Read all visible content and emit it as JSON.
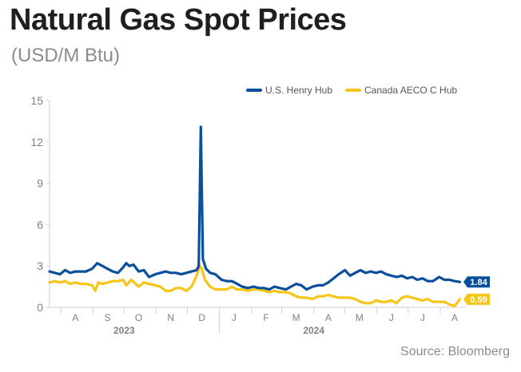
{
  "title": "Natural Gas Spot Prices",
  "subtitle": "(USD/M Btu)",
  "source": "Source: Bloomberg",
  "colors": {
    "henry_hub": "#0a4f9c",
    "aeco": "#f5c518",
    "axis_text": "#808080",
    "grid": "#d8d8d8"
  },
  "chart_data": {
    "type": "line",
    "title": "Natural Gas Spot Prices",
    "subtitle": "(USD/M Btu)",
    "xlabel": "",
    "ylabel": "",
    "ylim": [
      0,
      15
    ],
    "yticks": [
      "0",
      "3",
      "6",
      "9",
      "12",
      "15"
    ],
    "xlim": [
      "2023-07-21",
      "2024-08-25"
    ],
    "month_ticks": [
      {
        "label": "A",
        "date": "2023-08-15"
      },
      {
        "label": "S",
        "date": "2023-09-15"
      },
      {
        "label": "O",
        "date": "2023-10-15"
      },
      {
        "label": "N",
        "date": "2023-11-15"
      },
      {
        "label": "D",
        "date": "2023-12-15"
      },
      {
        "label": "J",
        "date": "2024-01-15"
      },
      {
        "label": "F",
        "date": "2024-02-15"
      },
      {
        "label": "M",
        "date": "2024-03-15"
      },
      {
        "label": "A",
        "date": "2024-04-15"
      },
      {
        "label": "M",
        "date": "2024-05-15"
      },
      {
        "label": "J",
        "date": "2024-06-15"
      },
      {
        "label": "J",
        "date": "2024-07-15"
      },
      {
        "label": "A",
        "date": "2024-08-15"
      }
    ],
    "year_labels": [
      {
        "label": "2023",
        "date": "2023-10-01"
      },
      {
        "label": "2024",
        "date": "2024-04-01"
      }
    ],
    "legend_position": "top-right",
    "grid": false,
    "series": [
      {
        "name": "U.S. Henry Hub",
        "color": "#0a4f9c",
        "end_label": "1.84",
        "points": [
          [
            "2023-07-21",
            2.6
          ],
          [
            "2023-07-26",
            2.5
          ],
          [
            "2023-07-31",
            2.4
          ],
          [
            "2023-08-05",
            2.7
          ],
          [
            "2023-08-10",
            2.5
          ],
          [
            "2023-08-15",
            2.6
          ],
          [
            "2023-08-20",
            2.6
          ],
          [
            "2023-08-25",
            2.6
          ],
          [
            "2023-08-31",
            2.8
          ],
          [
            "2023-09-05",
            3.2
          ],
          [
            "2023-09-10",
            3.0
          ],
          [
            "2023-09-15",
            2.8
          ],
          [
            "2023-09-20",
            2.6
          ],
          [
            "2023-09-25",
            2.5
          ],
          [
            "2023-09-30",
            2.9
          ],
          [
            "2023-10-03",
            3.2
          ],
          [
            "2023-10-06",
            3.0
          ],
          [
            "2023-10-10",
            3.1
          ],
          [
            "2023-10-15",
            2.6
          ],
          [
            "2023-10-20",
            2.7
          ],
          [
            "2023-10-25",
            2.2
          ],
          [
            "2023-10-31",
            2.4
          ],
          [
            "2023-11-05",
            2.5
          ],
          [
            "2023-11-10",
            2.6
          ],
          [
            "2023-11-15",
            2.5
          ],
          [
            "2023-11-20",
            2.5
          ],
          [
            "2023-11-25",
            2.4
          ],
          [
            "2023-11-30",
            2.5
          ],
          [
            "2023-12-05",
            2.6
          ],
          [
            "2023-12-10",
            2.7
          ],
          [
            "2023-12-12",
            3.0
          ],
          [
            "2023-12-14",
            13.1
          ],
          [
            "2023-12-16",
            3.5
          ],
          [
            "2023-12-19",
            2.8
          ],
          [
            "2023-12-23",
            2.5
          ],
          [
            "2023-12-28",
            2.4
          ],
          [
            "2024-01-03",
            2.0
          ],
          [
            "2024-01-08",
            1.9
          ],
          [
            "2024-01-13",
            1.9
          ],
          [
            "2024-01-18",
            1.7
          ],
          [
            "2024-01-23",
            1.5
          ],
          [
            "2024-01-28",
            1.4
          ],
          [
            "2024-02-03",
            1.5
          ],
          [
            "2024-02-08",
            1.4
          ],
          [
            "2024-02-13",
            1.4
          ],
          [
            "2024-02-18",
            1.3
          ],
          [
            "2024-02-23",
            1.5
          ],
          [
            "2024-02-28",
            1.4
          ],
          [
            "2024-03-05",
            1.3
          ],
          [
            "2024-03-10",
            1.5
          ],
          [
            "2024-03-15",
            1.7
          ],
          [
            "2024-03-20",
            1.6
          ],
          [
            "2024-03-25",
            1.3
          ],
          [
            "2024-03-31",
            1.5
          ],
          [
            "2024-04-05",
            1.6
          ],
          [
            "2024-04-10",
            1.6
          ],
          [
            "2024-04-15",
            1.8
          ],
          [
            "2024-04-20",
            2.1
          ],
          [
            "2024-04-25",
            2.4
          ],
          [
            "2024-05-01",
            2.7
          ],
          [
            "2024-05-06",
            2.3
          ],
          [
            "2024-05-11",
            2.5
          ],
          [
            "2024-05-16",
            2.7
          ],
          [
            "2024-05-21",
            2.5
          ],
          [
            "2024-05-26",
            2.6
          ],
          [
            "2024-05-31",
            2.5
          ],
          [
            "2024-06-05",
            2.6
          ],
          [
            "2024-06-10",
            2.4
          ],
          [
            "2024-06-15",
            2.3
          ],
          [
            "2024-06-20",
            2.2
          ],
          [
            "2024-06-25",
            2.3
          ],
          [
            "2024-06-30",
            2.1
          ],
          [
            "2024-07-05",
            2.2
          ],
          [
            "2024-07-10",
            2.0
          ],
          [
            "2024-07-15",
            2.1
          ],
          [
            "2024-07-20",
            1.9
          ],
          [
            "2024-07-25",
            1.9
          ],
          [
            "2024-07-31",
            2.2
          ],
          [
            "2024-08-05",
            2.0
          ],
          [
            "2024-08-10",
            2.0
          ],
          [
            "2024-08-15",
            1.9
          ],
          [
            "2024-08-20",
            1.84
          ]
        ]
      },
      {
        "name": "Canada AECO C Hub",
        "color": "#f5c518",
        "end_label": "0.59",
        "points": [
          [
            "2023-07-21",
            1.8
          ],
          [
            "2023-07-26",
            1.9
          ],
          [
            "2023-07-31",
            1.8
          ],
          [
            "2023-08-05",
            1.9
          ],
          [
            "2023-08-10",
            1.7
          ],
          [
            "2023-08-15",
            1.8
          ],
          [
            "2023-08-20",
            1.7
          ],
          [
            "2023-08-25",
            1.7
          ],
          [
            "2023-08-31",
            1.6
          ],
          [
            "2023-09-03",
            1.2
          ],
          [
            "2023-09-06",
            1.8
          ],
          [
            "2023-09-10",
            1.7
          ],
          [
            "2023-09-15",
            1.8
          ],
          [
            "2023-09-20",
            1.9
          ],
          [
            "2023-09-25",
            1.9
          ],
          [
            "2023-09-30",
            2.0
          ],
          [
            "2023-10-03",
            1.6
          ],
          [
            "2023-10-08",
            2.0
          ],
          [
            "2023-10-15",
            1.5
          ],
          [
            "2023-10-20",
            1.8
          ],
          [
            "2023-10-25",
            1.7
          ],
          [
            "2023-10-31",
            1.6
          ],
          [
            "2023-11-05",
            1.5
          ],
          [
            "2023-11-10",
            1.2
          ],
          [
            "2023-11-15",
            1.2
          ],
          [
            "2023-11-20",
            1.4
          ],
          [
            "2023-11-25",
            1.4
          ],
          [
            "2023-11-30",
            1.2
          ],
          [
            "2023-12-05",
            1.5
          ],
          [
            "2023-12-10",
            2.3
          ],
          [
            "2023-12-13",
            3.0
          ],
          [
            "2023-12-15",
            2.8
          ],
          [
            "2023-12-18",
            2.0
          ],
          [
            "2023-12-23",
            1.5
          ],
          [
            "2023-12-28",
            1.3
          ],
          [
            "2024-01-03",
            1.3
          ],
          [
            "2024-01-08",
            1.3
          ],
          [
            "2024-01-13",
            1.5
          ],
          [
            "2024-01-18",
            1.3
          ],
          [
            "2024-01-23",
            1.3
          ],
          [
            "2024-01-28",
            1.2
          ],
          [
            "2024-02-03",
            1.3
          ],
          [
            "2024-02-08",
            1.3
          ],
          [
            "2024-02-13",
            1.2
          ],
          [
            "2024-02-18",
            1.1
          ],
          [
            "2024-02-23",
            1.2
          ],
          [
            "2024-02-28",
            1.1
          ],
          [
            "2024-03-05",
            1.1
          ],
          [
            "2024-03-10",
            1.0
          ],
          [
            "2024-03-15",
            0.8
          ],
          [
            "2024-03-20",
            0.7
          ],
          [
            "2024-03-25",
            0.7
          ],
          [
            "2024-03-31",
            0.6
          ],
          [
            "2024-04-05",
            0.8
          ],
          [
            "2024-04-10",
            0.8
          ],
          [
            "2024-04-15",
            0.9
          ],
          [
            "2024-04-20",
            0.8
          ],
          [
            "2024-04-25",
            0.7
          ],
          [
            "2024-05-01",
            0.7
          ],
          [
            "2024-05-06",
            0.7
          ],
          [
            "2024-05-11",
            0.6
          ],
          [
            "2024-05-16",
            0.4
          ],
          [
            "2024-05-21",
            0.3
          ],
          [
            "2024-05-26",
            0.3
          ],
          [
            "2024-05-31",
            0.5
          ],
          [
            "2024-06-05",
            0.4
          ],
          [
            "2024-06-10",
            0.4
          ],
          [
            "2024-06-15",
            0.5
          ],
          [
            "2024-06-20",
            0.3
          ],
          [
            "2024-06-25",
            0.7
          ],
          [
            "2024-06-30",
            0.8
          ],
          [
            "2024-07-05",
            0.7
          ],
          [
            "2024-07-10",
            0.6
          ],
          [
            "2024-07-15",
            0.5
          ],
          [
            "2024-07-20",
            0.6
          ],
          [
            "2024-07-25",
            0.4
          ],
          [
            "2024-07-31",
            0.4
          ],
          [
            "2024-08-05",
            0.4
          ],
          [
            "2024-08-10",
            0.2
          ],
          [
            "2024-08-15",
            0.1
          ],
          [
            "2024-08-20",
            0.59
          ]
        ]
      }
    ]
  }
}
